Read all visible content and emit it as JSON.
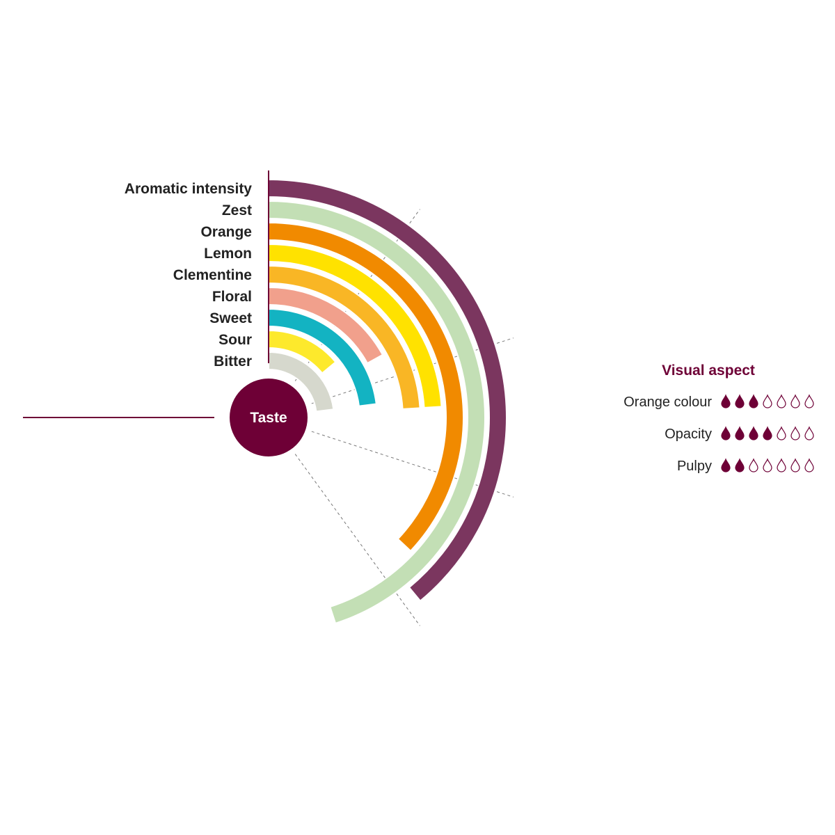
{
  "chart_data": {
    "type": "radial-bar",
    "center_label": "Taste",
    "max_value": 5,
    "series": [
      {
        "name": "Aromatic intensity",
        "value": 3.9,
        "color": "#7b365f"
      },
      {
        "name": "Zest",
        "value": 4.5,
        "color": "#c3dfb5"
      },
      {
        "name": "Orange",
        "value": 3.7,
        "color": "#f18a00"
      },
      {
        "name": "Lemon",
        "value": 2.4,
        "color": "#ffe200"
      },
      {
        "name": "Clementine",
        "value": 2.4,
        "color": "#f9b625"
      },
      {
        "name": "Floral",
        "value": 1.7,
        "color": "#f1a08c"
      },
      {
        "name": "Sweet",
        "value": 2.3,
        "color": "#13b3c2"
      },
      {
        "name": "Sour",
        "value": 1.4,
        "color": "#fde92c"
      },
      {
        "name": "Bitter",
        "value": 2.3,
        "color": "#d6d8cd"
      }
    ]
  },
  "visual_aspect": {
    "title": "Visual aspect",
    "title_color": "#6e0036",
    "drop_color": "#6e0036",
    "max_drops": 7,
    "items": [
      {
        "label": "Orange colour",
        "filled": 3
      },
      {
        "label": "Opacity",
        "filled": 4
      },
      {
        "label": "Pulpy",
        "filled": 2
      }
    ]
  }
}
